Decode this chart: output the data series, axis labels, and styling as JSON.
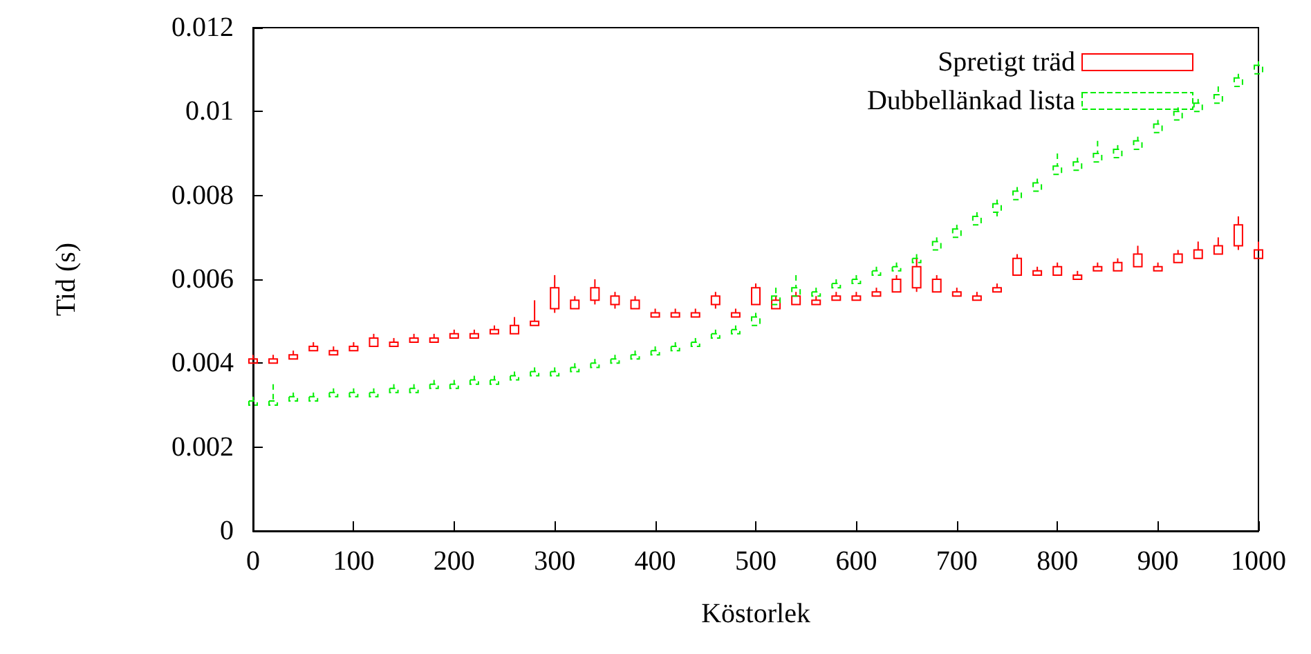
{
  "chart_data": {
    "type": "candlestick",
    "xlabel": "Köstorlek",
    "ylabel": "Tid (s)",
    "xlim": [
      0,
      1000
    ],
    "xticks": [
      0,
      100,
      200,
      300,
      400,
      500,
      600,
      700,
      800,
      900,
      1000
    ],
    "ylim": [
      0,
      0.012
    ],
    "yticks": [
      0,
      0.002,
      0.004,
      0.006,
      0.008,
      0.01,
      0.012
    ],
    "legend": "top right",
    "series": [
      {
        "name": "Spretigt träd",
        "color": "#ff0000",
        "line_style": "solid",
        "x": [
          0,
          20,
          40,
          60,
          80,
          100,
          120,
          140,
          160,
          180,
          200,
          220,
          240,
          260,
          280,
          300,
          320,
          340,
          360,
          380,
          400,
          420,
          440,
          460,
          480,
          500,
          520,
          540,
          560,
          580,
          600,
          620,
          640,
          660,
          680,
          700,
          720,
          740,
          760,
          780,
          800,
          820,
          840,
          860,
          880,
          900,
          920,
          940,
          960,
          980,
          1000
        ],
        "ohlc": [
          [
            0.004,
            0.0042,
            0.004,
            0.0041
          ],
          [
            0.004,
            0.0042,
            0.004,
            0.0041
          ],
          [
            0.0041,
            0.0043,
            0.0041,
            0.0042
          ],
          [
            0.0043,
            0.0045,
            0.0043,
            0.0044
          ],
          [
            0.0042,
            0.0044,
            0.0042,
            0.0043
          ],
          [
            0.0043,
            0.0045,
            0.0043,
            0.0044
          ],
          [
            0.0044,
            0.0047,
            0.0044,
            0.0046
          ],
          [
            0.0044,
            0.0046,
            0.0044,
            0.0045
          ],
          [
            0.0045,
            0.0047,
            0.0045,
            0.0046
          ],
          [
            0.0045,
            0.0047,
            0.0045,
            0.0046
          ],
          [
            0.0046,
            0.0048,
            0.0046,
            0.0047
          ],
          [
            0.0046,
            0.0048,
            0.0046,
            0.0047
          ],
          [
            0.0047,
            0.0049,
            0.0047,
            0.0048
          ],
          [
            0.0047,
            0.0051,
            0.0047,
            0.0049
          ],
          [
            0.0049,
            0.0055,
            0.0049,
            0.005
          ],
          [
            0.0053,
            0.0061,
            0.0052,
            0.0058
          ],
          [
            0.0053,
            0.0056,
            0.0053,
            0.0055
          ],
          [
            0.0055,
            0.006,
            0.0054,
            0.0058
          ],
          [
            0.0054,
            0.0057,
            0.0053,
            0.0056
          ],
          [
            0.0053,
            0.0056,
            0.0053,
            0.0055
          ],
          [
            0.0051,
            0.0053,
            0.0051,
            0.0052
          ],
          [
            0.0051,
            0.0053,
            0.0051,
            0.0052
          ],
          [
            0.0051,
            0.0053,
            0.0051,
            0.0052
          ],
          [
            0.0054,
            0.0057,
            0.0053,
            0.0056
          ],
          [
            0.0051,
            0.0053,
            0.0051,
            0.0052
          ],
          [
            0.0054,
            0.0059,
            0.0054,
            0.0058
          ],
          [
            0.0053,
            0.0056,
            0.0053,
            0.0055
          ],
          [
            0.0054,
            0.0057,
            0.0054,
            0.0056
          ],
          [
            0.0054,
            0.0056,
            0.0054,
            0.0055
          ],
          [
            0.0055,
            0.0057,
            0.0055,
            0.0056
          ],
          [
            0.0055,
            0.0057,
            0.0055,
            0.0056
          ],
          [
            0.0056,
            0.0058,
            0.0056,
            0.0057
          ],
          [
            0.0057,
            0.0061,
            0.0057,
            0.006
          ],
          [
            0.0058,
            0.0065,
            0.0057,
            0.0063
          ],
          [
            0.0057,
            0.0061,
            0.0057,
            0.006
          ],
          [
            0.0056,
            0.0058,
            0.0056,
            0.0057
          ],
          [
            0.0055,
            0.0057,
            0.0055,
            0.0056
          ],
          [
            0.0057,
            0.0059,
            0.0057,
            0.0058
          ],
          [
            0.0061,
            0.0066,
            0.0061,
            0.0065
          ],
          [
            0.0061,
            0.0063,
            0.0061,
            0.0062
          ],
          [
            0.0061,
            0.0064,
            0.0061,
            0.0063
          ],
          [
            0.006,
            0.0062,
            0.006,
            0.0061
          ],
          [
            0.0062,
            0.0064,
            0.0062,
            0.0063
          ],
          [
            0.0062,
            0.0065,
            0.0062,
            0.0064
          ],
          [
            0.0063,
            0.0068,
            0.0063,
            0.0066
          ],
          [
            0.0062,
            0.0064,
            0.0062,
            0.0063
          ],
          [
            0.0064,
            0.0067,
            0.0064,
            0.0066
          ],
          [
            0.0065,
            0.0069,
            0.0065,
            0.0067
          ],
          [
            0.0066,
            0.007,
            0.0066,
            0.0068
          ],
          [
            0.0068,
            0.0075,
            0.0067,
            0.0073
          ],
          [
            0.0065,
            0.0069,
            0.0065,
            0.0067
          ]
        ]
      },
      {
        "name": "Dubbellänkad lista",
        "color": "#00ee00",
        "line_style": "dashed",
        "x": [
          0,
          20,
          40,
          60,
          80,
          100,
          120,
          140,
          160,
          180,
          200,
          220,
          240,
          260,
          280,
          300,
          320,
          340,
          360,
          380,
          400,
          420,
          440,
          460,
          480,
          500,
          520,
          540,
          560,
          580,
          600,
          620,
          640,
          660,
          680,
          700,
          720,
          740,
          760,
          780,
          800,
          820,
          840,
          860,
          880,
          900,
          920,
          940,
          960,
          980,
          1000
        ],
        "ohlc": [
          [
            0.003,
            0.0032,
            0.003,
            0.0031
          ],
          [
            0.003,
            0.0035,
            0.003,
            0.0031
          ],
          [
            0.0031,
            0.0033,
            0.0031,
            0.0032
          ],
          [
            0.0031,
            0.0033,
            0.0031,
            0.0032
          ],
          [
            0.0032,
            0.0034,
            0.0032,
            0.0033
          ],
          [
            0.0032,
            0.0034,
            0.0032,
            0.0033
          ],
          [
            0.0032,
            0.0034,
            0.0032,
            0.0033
          ],
          [
            0.0033,
            0.0035,
            0.0033,
            0.0034
          ],
          [
            0.0033,
            0.0035,
            0.0033,
            0.0034
          ],
          [
            0.0034,
            0.0036,
            0.0034,
            0.0035
          ],
          [
            0.0034,
            0.0036,
            0.0034,
            0.0035
          ],
          [
            0.0035,
            0.0037,
            0.0035,
            0.0036
          ],
          [
            0.0035,
            0.0037,
            0.0035,
            0.0036
          ],
          [
            0.0036,
            0.0038,
            0.0036,
            0.0037
          ],
          [
            0.0037,
            0.0039,
            0.0037,
            0.0038
          ],
          [
            0.0037,
            0.0039,
            0.0037,
            0.0038
          ],
          [
            0.0038,
            0.004,
            0.0038,
            0.0039
          ],
          [
            0.0039,
            0.0041,
            0.0039,
            0.004
          ],
          [
            0.004,
            0.0042,
            0.004,
            0.0041
          ],
          [
            0.0041,
            0.0043,
            0.0041,
            0.0042
          ],
          [
            0.0042,
            0.0044,
            0.0042,
            0.0043
          ],
          [
            0.0043,
            0.0045,
            0.0043,
            0.0044
          ],
          [
            0.0044,
            0.0046,
            0.0044,
            0.0045
          ],
          [
            0.0046,
            0.0048,
            0.0046,
            0.0047
          ],
          [
            0.0047,
            0.0049,
            0.0047,
            0.0048
          ],
          [
            0.0049,
            0.0052,
            0.0049,
            0.0051
          ],
          [
            0.0054,
            0.0058,
            0.0054,
            0.0056
          ],
          [
            0.0056,
            0.0061,
            0.0056,
            0.0058
          ],
          [
            0.0056,
            0.0058,
            0.0056,
            0.0057
          ],
          [
            0.0058,
            0.006,
            0.0058,
            0.0059
          ],
          [
            0.0059,
            0.0061,
            0.0059,
            0.006
          ],
          [
            0.0061,
            0.0063,
            0.0061,
            0.0062
          ],
          [
            0.0062,
            0.0064,
            0.0062,
            0.0063
          ],
          [
            0.0064,
            0.0066,
            0.0064,
            0.0065
          ],
          [
            0.0067,
            0.007,
            0.0067,
            0.0069
          ],
          [
            0.007,
            0.0073,
            0.007,
            0.0072
          ],
          [
            0.0073,
            0.0076,
            0.0073,
            0.0075
          ],
          [
            0.0076,
            0.0079,
            0.0075,
            0.0078
          ],
          [
            0.0079,
            0.0082,
            0.0079,
            0.0081
          ],
          [
            0.0081,
            0.0084,
            0.0081,
            0.0083
          ],
          [
            0.0085,
            0.009,
            0.0085,
            0.0087
          ],
          [
            0.0086,
            0.0089,
            0.0086,
            0.0088
          ],
          [
            0.0088,
            0.0093,
            0.0088,
            0.009
          ],
          [
            0.0089,
            0.0092,
            0.0089,
            0.0091
          ],
          [
            0.0091,
            0.0094,
            0.0091,
            0.0093
          ],
          [
            0.0095,
            0.0098,
            0.0095,
            0.0097
          ],
          [
            0.0098,
            0.0101,
            0.0098,
            0.01
          ],
          [
            0.01,
            0.0103,
            0.01,
            0.0102
          ],
          [
            0.0102,
            0.0106,
            0.0102,
            0.0104
          ],
          [
            0.0106,
            0.0109,
            0.0106,
            0.0108
          ],
          [
            0.0109,
            0.0112,
            0.0109,
            0.0111
          ]
        ]
      }
    ]
  }
}
